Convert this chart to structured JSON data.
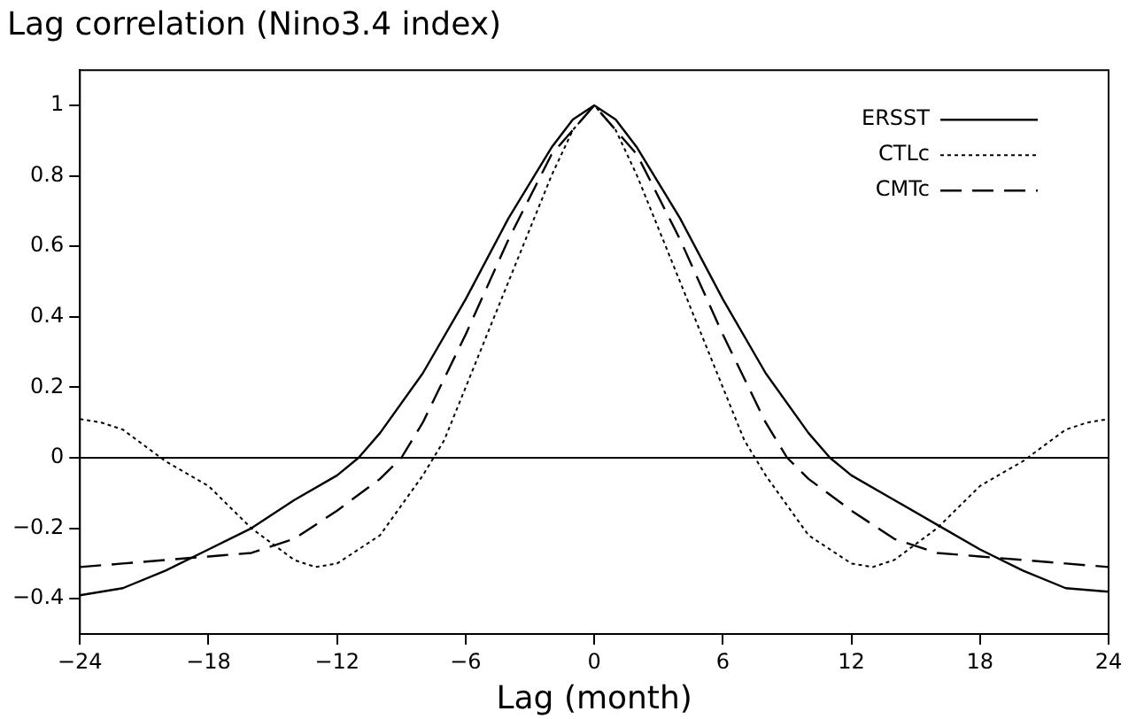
{
  "chart_data": {
    "type": "line",
    "title": "Lag correlation (Nino3.4 index)",
    "xlabel": "Lag (month)",
    "xlim": [
      -24,
      24
    ],
    "xticks": [
      -24,
      -18,
      -12,
      -6,
      0,
      6,
      12,
      18,
      24
    ],
    "ylim": [
      -0.5,
      1.1
    ],
    "yticks": [
      -0.4,
      -0.2,
      0,
      0.2,
      0.4,
      0.6,
      0.8,
      1
    ],
    "grid": false,
    "legend": "top right",
    "marker": "none",
    "ref_lines": [
      {
        "axis": "y",
        "value": 0,
        "color": "#000000"
      }
    ],
    "series": [
      {
        "name": "ERSST",
        "color": "#000000",
        "line_style": "solid",
        "x": [
          -24,
          -22,
          -20,
          -18,
          -16,
          -14,
          -12,
          -11,
          -10,
          -8,
          -6,
          -4,
          -2,
          -1,
          0,
          1,
          2,
          4,
          6,
          8,
          10,
          11,
          12,
          14,
          16,
          18,
          20,
          22,
          24
        ],
        "values": [
          -0.39,
          -0.37,
          -0.32,
          -0.26,
          -0.2,
          -0.12,
          -0.05,
          0,
          0.07,
          0.24,
          0.45,
          0.68,
          0.88,
          0.96,
          1,
          0.96,
          0.88,
          0.68,
          0.45,
          0.24,
          0.07,
          0,
          -0.05,
          -0.12,
          -0.19,
          -0.26,
          -0.32,
          -0.37,
          -0.38
        ]
      },
      {
        "name": "CTLc",
        "color": "#000000",
        "line_style": "dotted",
        "x": [
          -24,
          -23,
          -22,
          -20,
          -18,
          -16,
          -14,
          -13,
          -12,
          -10,
          -8,
          -7,
          -6,
          -4,
          -2,
          -1,
          0,
          1,
          2,
          4,
          6,
          7,
          8,
          10,
          12,
          13,
          14,
          16,
          18,
          20,
          22,
          23,
          24
        ],
        "values": [
          0.11,
          0.1,
          0.08,
          -0.01,
          -0.08,
          -0.2,
          -0.29,
          -0.31,
          -0.3,
          -0.22,
          -0.05,
          0.05,
          0.2,
          0.5,
          0.8,
          0.93,
          1,
          0.93,
          0.8,
          0.5,
          0.2,
          0.05,
          -0.05,
          -0.22,
          -0.3,
          -0.31,
          -0.29,
          -0.2,
          -0.08,
          -0.01,
          0.08,
          0.1,
          0.11
        ]
      },
      {
        "name": "CMTc",
        "color": "#000000",
        "line_style": "dashed",
        "x": [
          -24,
          -22,
          -20,
          -18,
          -16,
          -14,
          -12,
          -10,
          -9,
          -8,
          -6,
          -4,
          -2,
          0,
          2,
          4,
          6,
          8,
          9,
          10,
          12,
          14,
          16,
          18,
          20,
          22,
          24
        ],
        "values": [
          -0.31,
          -0.3,
          -0.29,
          -0.28,
          -0.27,
          -0.23,
          -0.15,
          -0.06,
          0,
          0.1,
          0.35,
          0.62,
          0.86,
          1,
          0.86,
          0.62,
          0.35,
          0.1,
          0,
          -0.06,
          -0.15,
          -0.23,
          -0.27,
          -0.28,
          -0.29,
          -0.3,
          -0.31
        ]
      }
    ]
  }
}
